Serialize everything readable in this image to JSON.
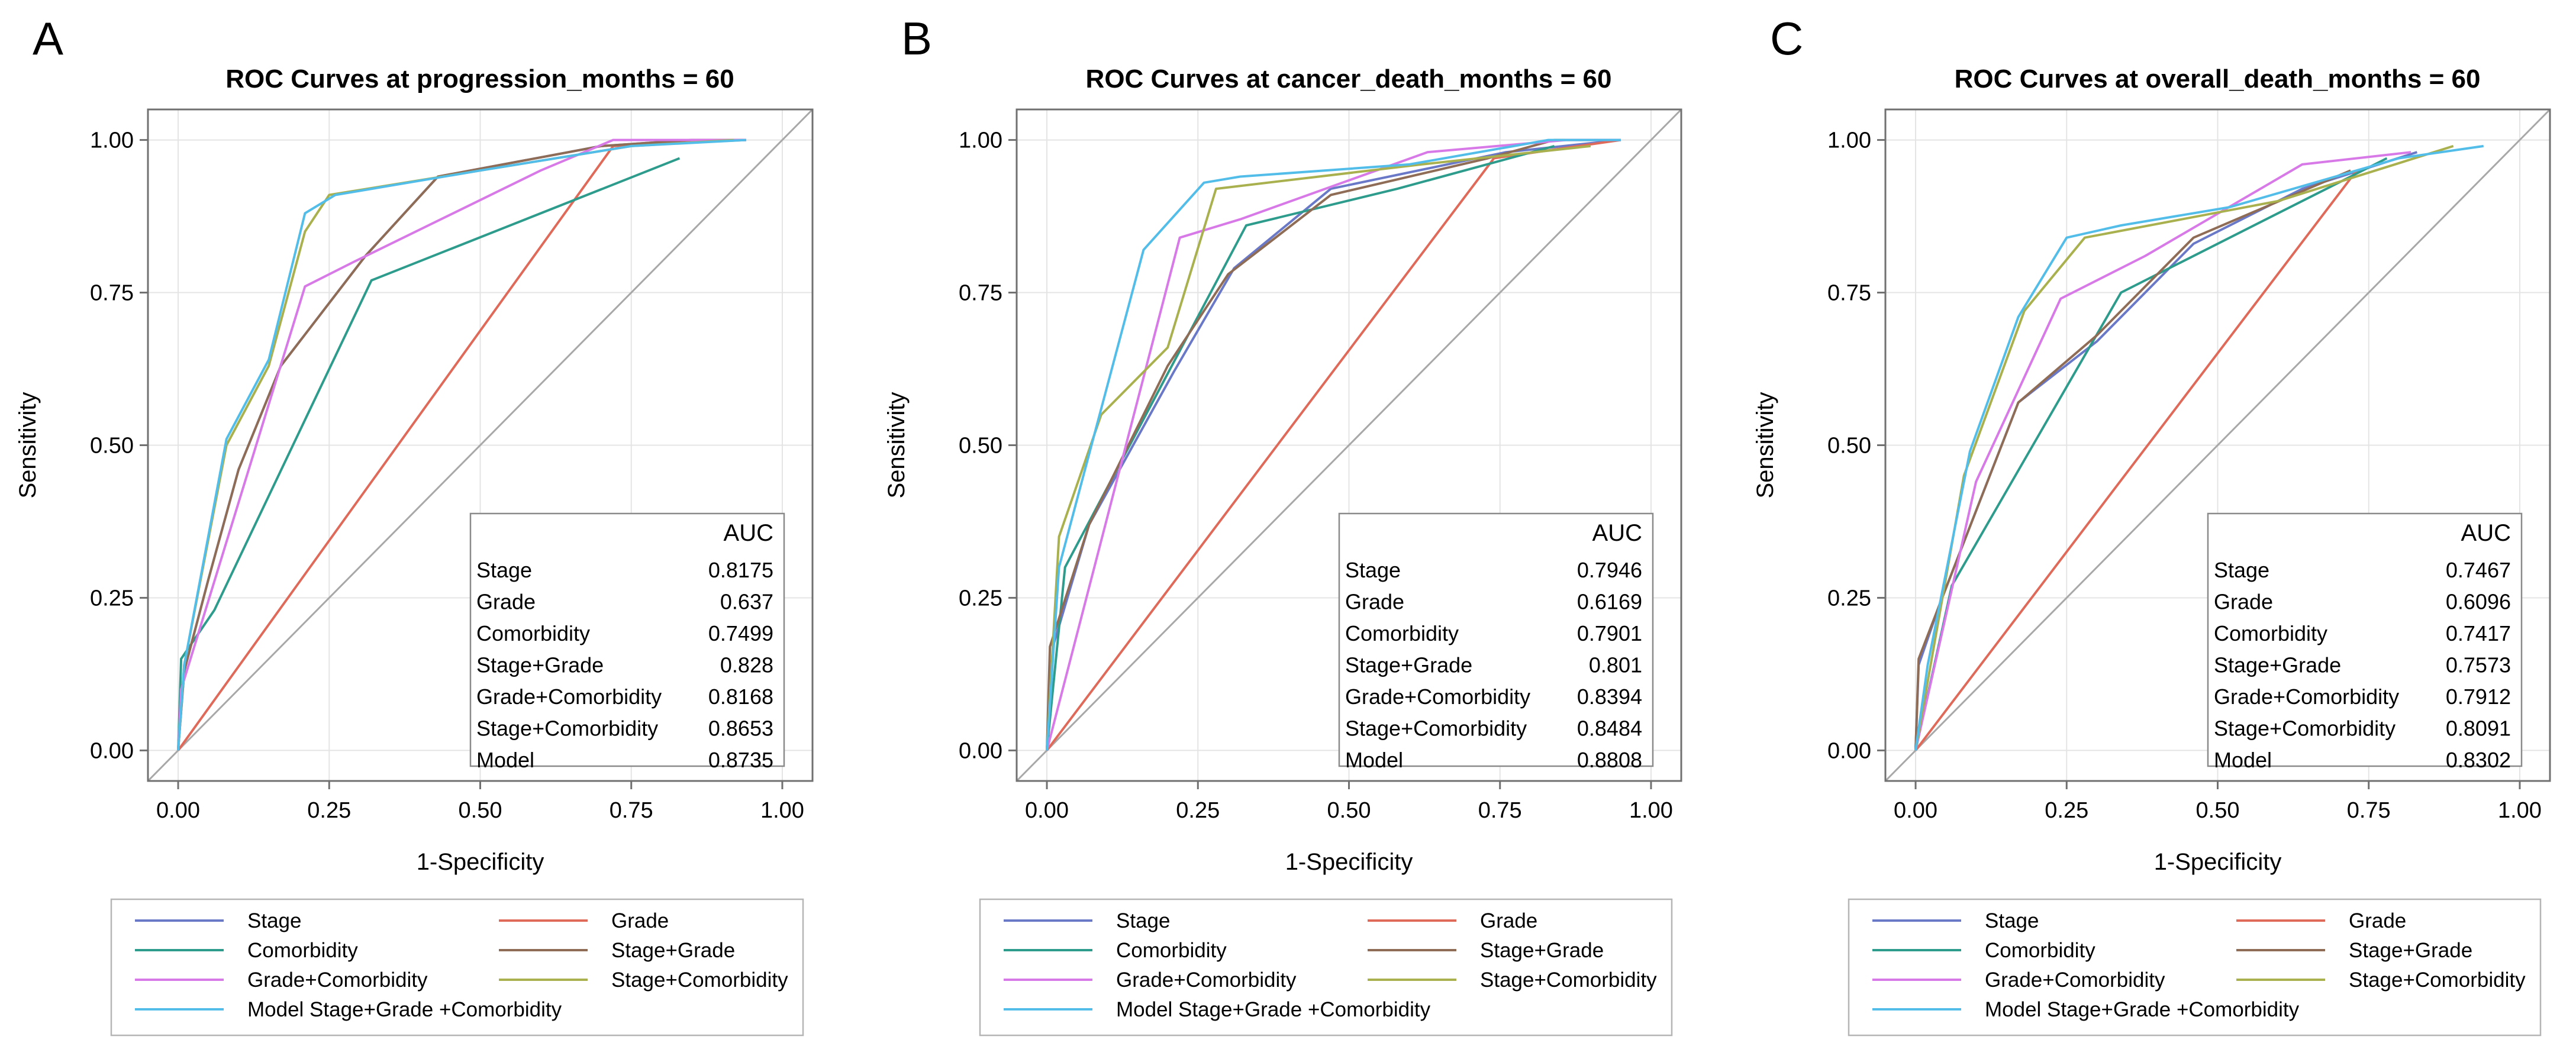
{
  "chart_data": [
    {
      "panel": "A",
      "type": "line",
      "title": "ROC Curves at progression_months = 60",
      "xlabel": "1-Specificity",
      "ylabel": "Sensitivity",
      "xlim": [
        0,
        1
      ],
      "ylim": [
        0,
        1
      ],
      "xticks": [
        "0.00",
        "0.25",
        "0.50",
        "0.75",
        "1.00"
      ],
      "yticks": [
        "0.00",
        "0.25",
        "0.50",
        "0.75",
        "1.00"
      ],
      "auc_header": "AUC",
      "series": [
        {
          "name": "Stage",
          "legend": "Stage",
          "color": "#6a78c8",
          "auc": "0.8175",
          "points": [
            [
              0,
              0
            ],
            [
              0.01,
              0.13
            ],
            [
              0.05,
              0.28
            ],
            [
              0.1,
              0.46
            ],
            [
              0.17,
              0.63
            ],
            [
              0.31,
              0.81
            ],
            [
              0.43,
              0.94
            ],
            [
              0.7,
              0.99
            ],
            [
              0.85,
              1.0
            ],
            [
              0.94,
              1.0
            ]
          ]
        },
        {
          "name": "Grade",
          "legend": "Grade",
          "color": "#e06a5a",
          "auc": "0.637",
          "points": [
            [
              0,
              0
            ],
            [
              0.72,
              0.99
            ],
            [
              0.94,
              1.0
            ]
          ]
        },
        {
          "name": "Comorbidity",
          "legend": "Comorbidity",
          "color": "#2e9c8c",
          "auc": "0.7499",
          "points": [
            [
              0,
              0
            ],
            [
              0.005,
              0.15
            ],
            [
              0.06,
              0.23
            ],
            [
              0.32,
              0.77
            ],
            [
              0.83,
              0.97
            ]
          ]
        },
        {
          "name": "Stage+Grade",
          "legend": "Stage+Grade",
          "color": "#8f6c56",
          "auc": "0.828",
          "points": [
            [
              0,
              0
            ],
            [
              0.01,
              0.13
            ],
            [
              0.05,
              0.28
            ],
            [
              0.1,
              0.46
            ],
            [
              0.17,
              0.63
            ],
            [
              0.31,
              0.81
            ],
            [
              0.43,
              0.94
            ],
            [
              0.7,
              0.99
            ],
            [
              0.85,
              1.0
            ],
            [
              0.94,
              1.0
            ]
          ]
        },
        {
          "name": "Grade+Comorbidity",
          "legend": "Grade+Comorbidity",
          "color": "#d879e8",
          "auc": "0.8168",
          "points": [
            [
              0,
              0
            ],
            [
              0.005,
              0.1
            ],
            [
              0.21,
              0.76
            ],
            [
              0.29,
              0.8
            ],
            [
              0.6,
              0.95
            ],
            [
              0.72,
              1.0
            ],
            [
              0.94,
              1.0
            ]
          ]
        },
        {
          "name": "Stage+Comorbidity",
          "legend": "Stage+Comorbidity",
          "color": "#a9b04e",
          "auc": "0.8653",
          "points": [
            [
              0,
              0
            ],
            [
              0.01,
              0.14
            ],
            [
              0.08,
              0.5
            ],
            [
              0.15,
              0.63
            ],
            [
              0.21,
              0.85
            ],
            [
              0.25,
              0.91
            ],
            [
              0.5,
              0.95
            ],
            [
              0.75,
              0.99
            ],
            [
              0.92,
              1.0
            ]
          ]
        },
        {
          "name": "Model",
          "legend": "Model  Stage+Grade +Comorbidity",
          "color": "#52bde8",
          "auc": "0.8735",
          "points": [
            [
              0,
              0
            ],
            [
              0.01,
              0.14
            ],
            [
              0.08,
              0.51
            ],
            [
              0.15,
              0.64
            ],
            [
              0.21,
              0.88
            ],
            [
              0.26,
              0.91
            ],
            [
              0.5,
              0.95
            ],
            [
              0.75,
              0.99
            ],
            [
              0.94,
              1.0
            ]
          ]
        }
      ]
    },
    {
      "panel": "B",
      "type": "line",
      "title": "ROC Curves at cancer_death_months = 60",
      "xlabel": "1-Specificity",
      "ylabel": "Sensitivity",
      "xlim": [
        0,
        1
      ],
      "ylim": [
        0,
        1
      ],
      "xticks": [
        "0.00",
        "0.25",
        "0.50",
        "0.75",
        "1.00"
      ],
      "yticks": [
        "0.00",
        "0.25",
        "0.50",
        "0.75",
        "1.00"
      ],
      "auc_header": "AUC",
      "series": [
        {
          "name": "Stage",
          "legend": "Stage",
          "color": "#6a78c8",
          "auc": "0.7946",
          "points": [
            [
              0,
              0
            ],
            [
              0.01,
              0.17
            ],
            [
              0.07,
              0.37
            ],
            [
              0.21,
              0.62
            ],
            [
              0.31,
              0.79
            ],
            [
              0.47,
              0.92
            ],
            [
              0.76,
              0.98
            ],
            [
              0.95,
              1.0
            ]
          ]
        },
        {
          "name": "Grade",
          "legend": "Grade",
          "color": "#e06a5a",
          "auc": "0.6169",
          "points": [
            [
              0,
              0
            ],
            [
              0.74,
              0.97
            ],
            [
              0.95,
              1.0
            ]
          ]
        },
        {
          "name": "Comorbidity",
          "legend": "Comorbidity",
          "color": "#2e9c8c",
          "auc": "0.7901",
          "points": [
            [
              0,
              0
            ],
            [
              0.03,
              0.3
            ],
            [
              0.33,
              0.86
            ],
            [
              0.58,
              0.92
            ],
            [
              0.84,
              0.99
            ]
          ]
        },
        {
          "name": "Stage+Grade",
          "legend": "Stage+Grade",
          "color": "#8f6c56",
          "auc": "0.801",
          "points": [
            [
              0,
              0
            ],
            [
              0.005,
              0.17
            ],
            [
              0.07,
              0.37
            ],
            [
              0.2,
              0.63
            ],
            [
              0.3,
              0.78
            ],
            [
              0.47,
              0.91
            ],
            [
              0.73,
              0.97
            ],
            [
              0.84,
              1.0
            ],
            [
              0.95,
              1.0
            ]
          ]
        },
        {
          "name": "Grade+Comorbidity",
          "legend": "Grade+Comorbidity",
          "color": "#d879e8",
          "auc": "0.8394",
          "points": [
            [
              0,
              0
            ],
            [
              0.22,
              0.84
            ],
            [
              0.32,
              0.87
            ],
            [
              0.63,
              0.98
            ],
            [
              0.86,
              1.0
            ],
            [
              0.95,
              1.0
            ]
          ]
        },
        {
          "name": "Stage+Comorbidity",
          "legend": "Stage+Comorbidity",
          "color": "#a9b04e",
          "auc": "0.8484",
          "points": [
            [
              0,
              0
            ],
            [
              0.02,
              0.35
            ],
            [
              0.09,
              0.55
            ],
            [
              0.2,
              0.66
            ],
            [
              0.28,
              0.92
            ],
            [
              0.62,
              0.96
            ],
            [
              0.9,
              0.99
            ]
          ]
        },
        {
          "name": "Model",
          "legend": "Model  Stage+Grade +Comorbidity",
          "color": "#52bde8",
          "auc": "0.8808",
          "points": [
            [
              0,
              0
            ],
            [
              0.02,
              0.3
            ],
            [
              0.09,
              0.56
            ],
            [
              0.16,
              0.82
            ],
            [
              0.26,
              0.93
            ],
            [
              0.32,
              0.94
            ],
            [
              0.6,
              0.96
            ],
            [
              0.83,
              1.0
            ],
            [
              0.95,
              1.0
            ]
          ]
        }
      ]
    },
    {
      "panel": "C",
      "type": "line",
      "title": "ROC Curves at overall_death_months = 60",
      "xlabel": "1-Specificity",
      "ylabel": "Sensitivity",
      "xlim": [
        0,
        1
      ],
      "ylim": [
        0,
        1
      ],
      "xticks": [
        "0.00",
        "0.25",
        "0.50",
        "0.75",
        "1.00"
      ],
      "yticks": [
        "0.00",
        "0.25",
        "0.50",
        "0.75",
        "1.00"
      ],
      "auc_header": "AUC",
      "series": [
        {
          "name": "Stage",
          "legend": "Stage",
          "color": "#6a78c8",
          "auc": "0.7467",
          "points": [
            [
              0,
              0
            ],
            [
              0.005,
              0.14
            ],
            [
              0.04,
              0.24
            ],
            [
              0.17,
              0.57
            ],
            [
              0.3,
              0.67
            ],
            [
              0.46,
              0.83
            ],
            [
              0.64,
              0.92
            ],
            [
              0.83,
              0.98
            ]
          ]
        },
        {
          "name": "Grade",
          "legend": "Grade",
          "color": "#e06a5a",
          "auc": "0.6096",
          "points": [
            [
              0,
              0
            ],
            [
              0.73,
              0.95
            ]
          ]
        },
        {
          "name": "Comorbidity",
          "legend": "Comorbidity",
          "color": "#2e9c8c",
          "auc": "0.7417",
          "points": [
            [
              0,
              0
            ],
            [
              0.06,
              0.27
            ],
            [
              0.34,
              0.75
            ],
            [
              0.78,
              0.97
            ]
          ]
        },
        {
          "name": "Stage+Grade",
          "legend": "Stage+Grade",
          "color": "#8f6c56",
          "auc": "0.7573",
          "points": [
            [
              0,
              0
            ],
            [
              0.005,
              0.15
            ],
            [
              0.04,
              0.24
            ],
            [
              0.17,
              0.57
            ],
            [
              0.3,
              0.68
            ],
            [
              0.46,
              0.84
            ],
            [
              0.72,
              0.95
            ]
          ]
        },
        {
          "name": "Grade+Comorbidity",
          "legend": "Grade+Comorbidity",
          "color": "#d879e8",
          "auc": "0.7912",
          "points": [
            [
              0,
              0
            ],
            [
              0.1,
              0.44
            ],
            [
              0.24,
              0.74
            ],
            [
              0.38,
              0.81
            ],
            [
              0.64,
              0.96
            ],
            [
              0.82,
              0.98
            ]
          ]
        },
        {
          "name": "Stage+Comorbidity",
          "legend": "Stage+Comorbidity",
          "color": "#a9b04e",
          "auc": "0.8091",
          "points": [
            [
              0,
              0
            ],
            [
              0.08,
              0.45
            ],
            [
              0.18,
              0.72
            ],
            [
              0.28,
              0.84
            ],
            [
              0.6,
              0.9
            ],
            [
              0.89,
              0.99
            ]
          ]
        },
        {
          "name": "Model",
          "legend": "Model  Stage+Grade +Comorbidity",
          "color": "#52bde8",
          "auc": "0.8302",
          "points": [
            [
              0,
              0
            ],
            [
              0.02,
              0.14
            ],
            [
              0.09,
              0.49
            ],
            [
              0.17,
              0.71
            ],
            [
              0.25,
              0.84
            ],
            [
              0.34,
              0.86
            ],
            [
              0.52,
              0.89
            ],
            [
              0.8,
              0.97
            ],
            [
              0.94,
              0.99
            ]
          ]
        }
      ]
    }
  ]
}
